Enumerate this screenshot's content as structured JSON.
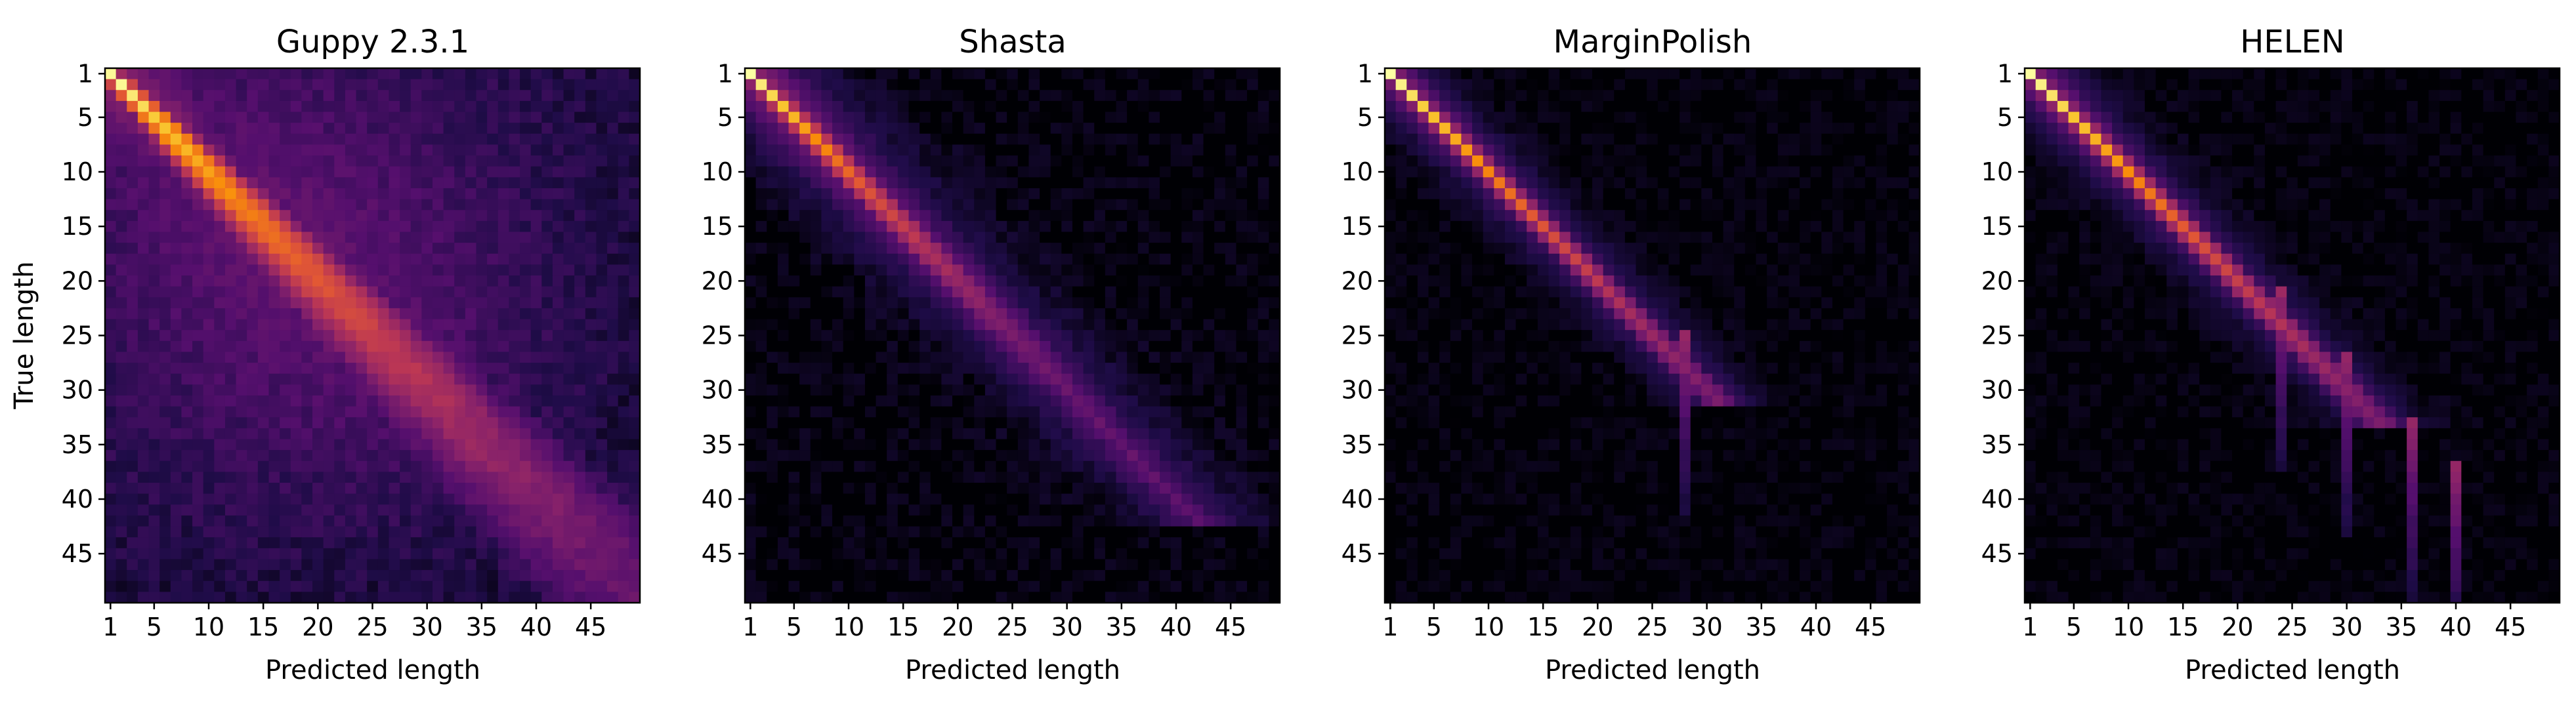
{
  "chart_data": [
    {
      "type": "heatmap",
      "title": "Guppy 2.3.1",
      "xlabel": "Predicted length",
      "ylabel": "True length",
      "x_ticks": [
        "1",
        "5",
        "10",
        "15",
        "20",
        "25",
        "30",
        "35",
        "40",
        "45"
      ],
      "y_ticks": [
        "1",
        "5",
        "10",
        "15",
        "20",
        "25",
        "30",
        "35",
        "40",
        "45"
      ],
      "x_range": [
        1,
        49
      ],
      "y_range": [
        1,
        49
      ],
      "colormap": "inferno",
      "pattern": {
        "diagonal_peak": 1.0,
        "diagonal_decay": 0.04,
        "spread": 0.35,
        "background": 0.16,
        "diag_cutoff": 49,
        "spikes": [],
        "noise": 0.05
      }
    },
    {
      "type": "heatmap",
      "title": "Shasta",
      "xlabel": "Predicted length",
      "ylabel": "",
      "x_ticks": [
        "1",
        "5",
        "10",
        "15",
        "20",
        "25",
        "30",
        "35",
        "40",
        "45"
      ],
      "y_ticks": [
        "1",
        "5",
        "10",
        "15",
        "20",
        "25",
        "30",
        "35",
        "40",
        "45"
      ],
      "x_range": [
        1,
        49
      ],
      "y_range": [
        1,
        49
      ],
      "colormap": "inferno",
      "pattern": {
        "diagonal_peak": 1.0,
        "diagonal_decay": 0.07,
        "spread": 0.16,
        "background": 0.0,
        "diag_cutoff": 40,
        "spikes": [],
        "noise": 0.03
      }
    },
    {
      "type": "heatmap",
      "title": "MarginPolish",
      "xlabel": "Predicted length",
      "ylabel": "",
      "x_ticks": [
        "1",
        "5",
        "10",
        "15",
        "20",
        "25",
        "30",
        "35",
        "40",
        "45"
      ],
      "y_ticks": [
        "1",
        "5",
        "10",
        "15",
        "20",
        "25",
        "30",
        "35",
        "40",
        "45"
      ],
      "x_range": [
        1,
        49
      ],
      "y_range": [
        1,
        49
      ],
      "colormap": "inferno",
      "pattern": {
        "diagonal_peak": 1.0,
        "diagonal_decay": 0.055,
        "spread": 0.07,
        "background": 0.0,
        "diag_cutoff": 29,
        "spikes": [
          28
        ],
        "noise": 0.02
      }
    },
    {
      "type": "heatmap",
      "title": "HELEN",
      "xlabel": "Predicted length",
      "ylabel": "",
      "x_ticks": [
        "1",
        "5",
        "10",
        "15",
        "20",
        "25",
        "30",
        "35",
        "40",
        "45"
      ],
      "y_ticks": [
        "1",
        "5",
        "10",
        "15",
        "20",
        "25",
        "30",
        "35",
        "40",
        "45"
      ],
      "x_range": [
        1,
        49
      ],
      "y_range": [
        1,
        49
      ],
      "colormap": "inferno",
      "pattern": {
        "diagonal_peak": 1.0,
        "diagonal_decay": 0.05,
        "spread": 0.08,
        "background": 0.0,
        "diag_cutoff": 31,
        "spikes": [
          24,
          30,
          36,
          40
        ],
        "noise": 0.02
      }
    }
  ]
}
